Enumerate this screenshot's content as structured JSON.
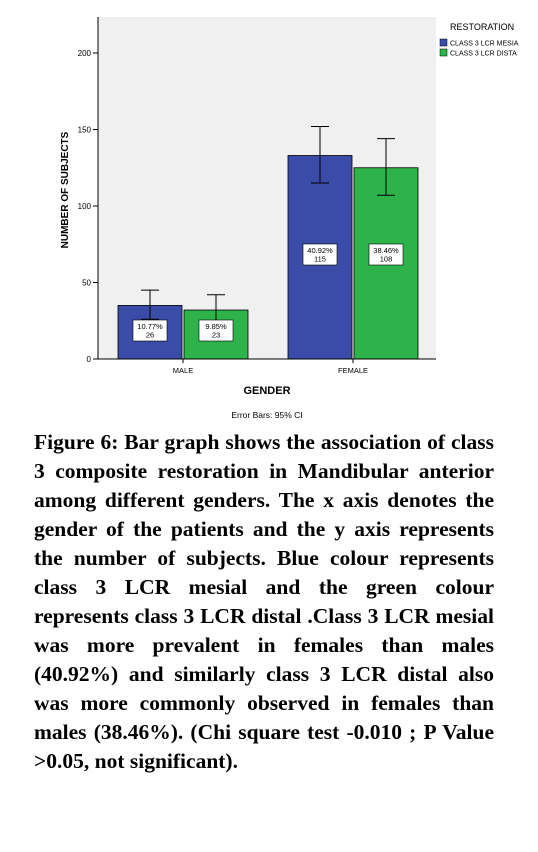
{
  "chart_data": {
    "type": "bar",
    "title": "",
    "xlabel": "GENDER",
    "ylabel": "NUMBER OF SUBJECTS",
    "categories": [
      "MALE",
      "FEMALE"
    ],
    "ylim": [
      0,
      210
    ],
    "yticks": [
      0,
      50,
      100,
      150,
      200
    ],
    "legend": {
      "title": "RESTORATION",
      "placement": "top-right"
    },
    "series": [
      {
        "name": "CLASS 3 LCR MESIA",
        "color": "#3a4ca8",
        "values": [
          35,
          133
        ],
        "error_low": [
          26,
          115
        ],
        "error_high": [
          45,
          152
        ],
        "labels": [
          [
            "10.77%",
            "26"
          ],
          [
            "40.92%",
            "115"
          ]
        ]
      },
      {
        "name": "CLASS 3 LCR DISTA",
        "color": "#2db34a",
        "values": [
          32,
          125
        ],
        "error_low": [
          23,
          107
        ],
        "error_high": [
          42,
          144
        ],
        "labels": [
          [
            "9.85%",
            "23"
          ],
          [
            "38.46%",
            "108"
          ]
        ]
      }
    ],
    "note": "Error Bars: 95% CI"
  },
  "caption": "Figure 6: Bar graph shows the association of class 3 composite restoration in Mandibular anterior among different genders. The x axis denotes the gender of the patients and the y axis represents the number of subjects. Blue colour represents class 3 LCR mesial and the green colour represents class 3 LCR distal .Class 3 LCR mesial was more prevalent in females than males (40.92%) and similarly class 3 LCR distal also was more commonly observed in females than males (38.46%). (Chi square test -0.010 ; P Value >0.05, not significant)."
}
